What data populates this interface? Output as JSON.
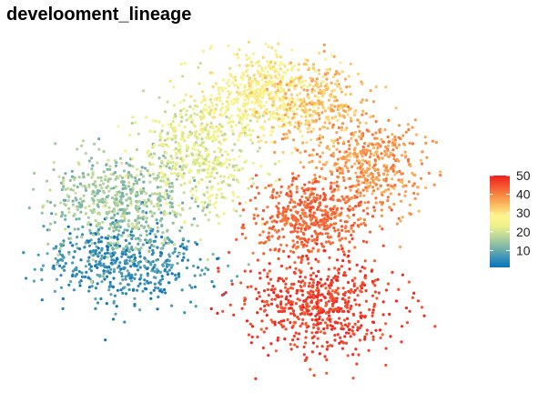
{
  "chart_data": {
    "type": "scatter",
    "title": "develooment_lineage",
    "xlabel": "",
    "ylabel": "",
    "grid": false,
    "axes_visible": false,
    "color_variable_range": [
      1,
      50
    ],
    "colorbar": {
      "ticks": [
        10,
        20,
        30,
        40,
        50
      ],
      "tick_labels": [
        "10",
        "20",
        "30",
        "40",
        "50"
      ],
      "palette": [
        "#0a72b8",
        "#3e94b8",
        "#7fb7a6",
        "#b7d59a",
        "#ebf08a",
        "#fff58f",
        "#fbc266",
        "#f98d45",
        "#f4532f",
        "#ee1e1e"
      ],
      "position": "right"
    },
    "series": [
      {
        "lineage_range": [
          1,
          10
        ],
        "center": [
          -7.0,
          -2.0
        ],
        "spread": [
          2.6,
          1.6
        ],
        "n": 520
      },
      {
        "lineage_range": [
          10,
          20
        ],
        "center": [
          -7.2,
          1.5
        ],
        "spread": [
          2.4,
          2.0
        ],
        "n": 560
      },
      {
        "lineage_range": [
          17,
          27
        ],
        "center": [
          -3.5,
          4.5
        ],
        "spread": [
          2.0,
          2.4
        ],
        "n": 520
      },
      {
        "lineage_range": [
          24,
          32
        ],
        "center": [
          -0.5,
          8.0
        ],
        "spread": [
          1.8,
          1.8
        ],
        "n": 480
      },
      {
        "lineage_range": [
          30,
          38
        ],
        "center": [
          2.2,
          7.2
        ],
        "spread": [
          1.6,
          1.6
        ],
        "n": 330
      },
      {
        "lineage_range": [
          34,
          42
        ],
        "center": [
          4.8,
          3.6
        ],
        "spread": [
          2.0,
          1.8
        ],
        "n": 460
      },
      {
        "lineage_range": [
          40,
          46
        ],
        "center": [
          1.8,
          0.6
        ],
        "spread": [
          1.8,
          1.6
        ],
        "n": 480
      },
      {
        "lineage_range": [
          43,
          50
        ],
        "center": [
          2.5,
          -4.5
        ],
        "spread": [
          2.4,
          2.0
        ],
        "n": 620
      }
    ],
    "xlim": [
      -12,
      9
    ],
    "ylim": [
      -9,
      11
    ]
  }
}
